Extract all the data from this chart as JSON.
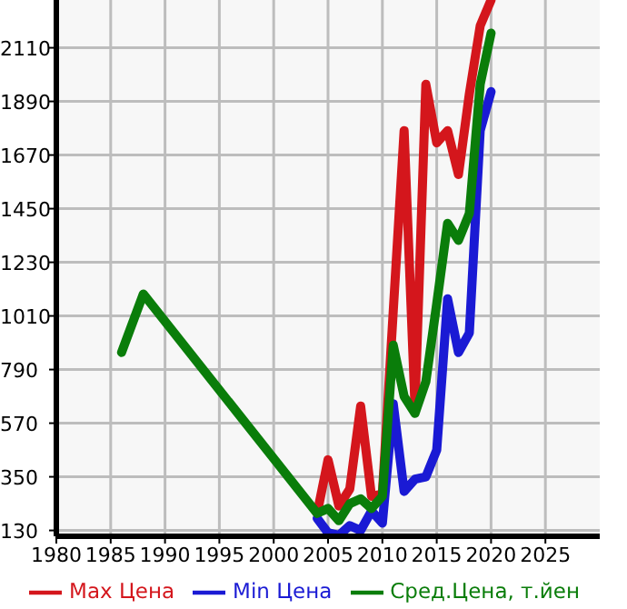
{
  "chart_data": {
    "type": "line",
    "xlim": [
      1980,
      2030
    ],
    "xticks": [
      1980,
      1985,
      1990,
      1995,
      2000,
      2005,
      2010,
      2015,
      2020,
      2025
    ],
    "ylim": [
      106,
      2306
    ],
    "yticks": [
      130,
      350,
      570,
      790,
      1010,
      1230,
      1450,
      1670,
      1890,
      2110
    ],
    "grid": true,
    "legend": "bottom",
    "marker": "none",
    "line_style": "solid",
    "series": [
      {
        "name": "Max Цена",
        "color": "#d4161c",
        "x": [
          2004,
          2005,
          2006,
          2007,
          2008,
          2009,
          2010,
          2011,
          2012,
          2013,
          2014,
          2015,
          2016,
          2017,
          2018,
          2019,
          2020
        ],
        "values": [
          200,
          420,
          230,
          300,
          640,
          270,
          280,
          1030,
          1770,
          640,
          1960,
          1720,
          1770,
          1590,
          1920,
          2200,
          2306
        ]
      },
      {
        "name": "Min Цена",
        "color": "#1a1ad4",
        "x": [
          2004,
          2005,
          2006,
          2007,
          2008,
          2009,
          2010,
          2011,
          2012,
          2013,
          2014,
          2015,
          2016,
          2017,
          2018,
          2019,
          2020
        ],
        "values": [
          180,
          120,
          110,
          150,
          130,
          210,
          160,
          650,
          290,
          340,
          350,
          460,
          1080,
          860,
          940,
          1770,
          1930
        ]
      },
      {
        "name": "Сред.Цена, т.йен",
        "color": "#0a7d0a",
        "x": [
          1986,
          1988,
          2004,
          2005,
          2006,
          2007,
          2008,
          2009,
          2010,
          2011,
          2012,
          2013,
          2014,
          2015,
          2016,
          2017,
          2018,
          2019,
          2020
        ],
        "values": [
          860,
          1100,
          200,
          220,
          170,
          240,
          260,
          220,
          270,
          890,
          680,
          610,
          740,
          1060,
          1390,
          1320,
          1430,
          1960,
          2170
        ]
      }
    ]
  }
}
